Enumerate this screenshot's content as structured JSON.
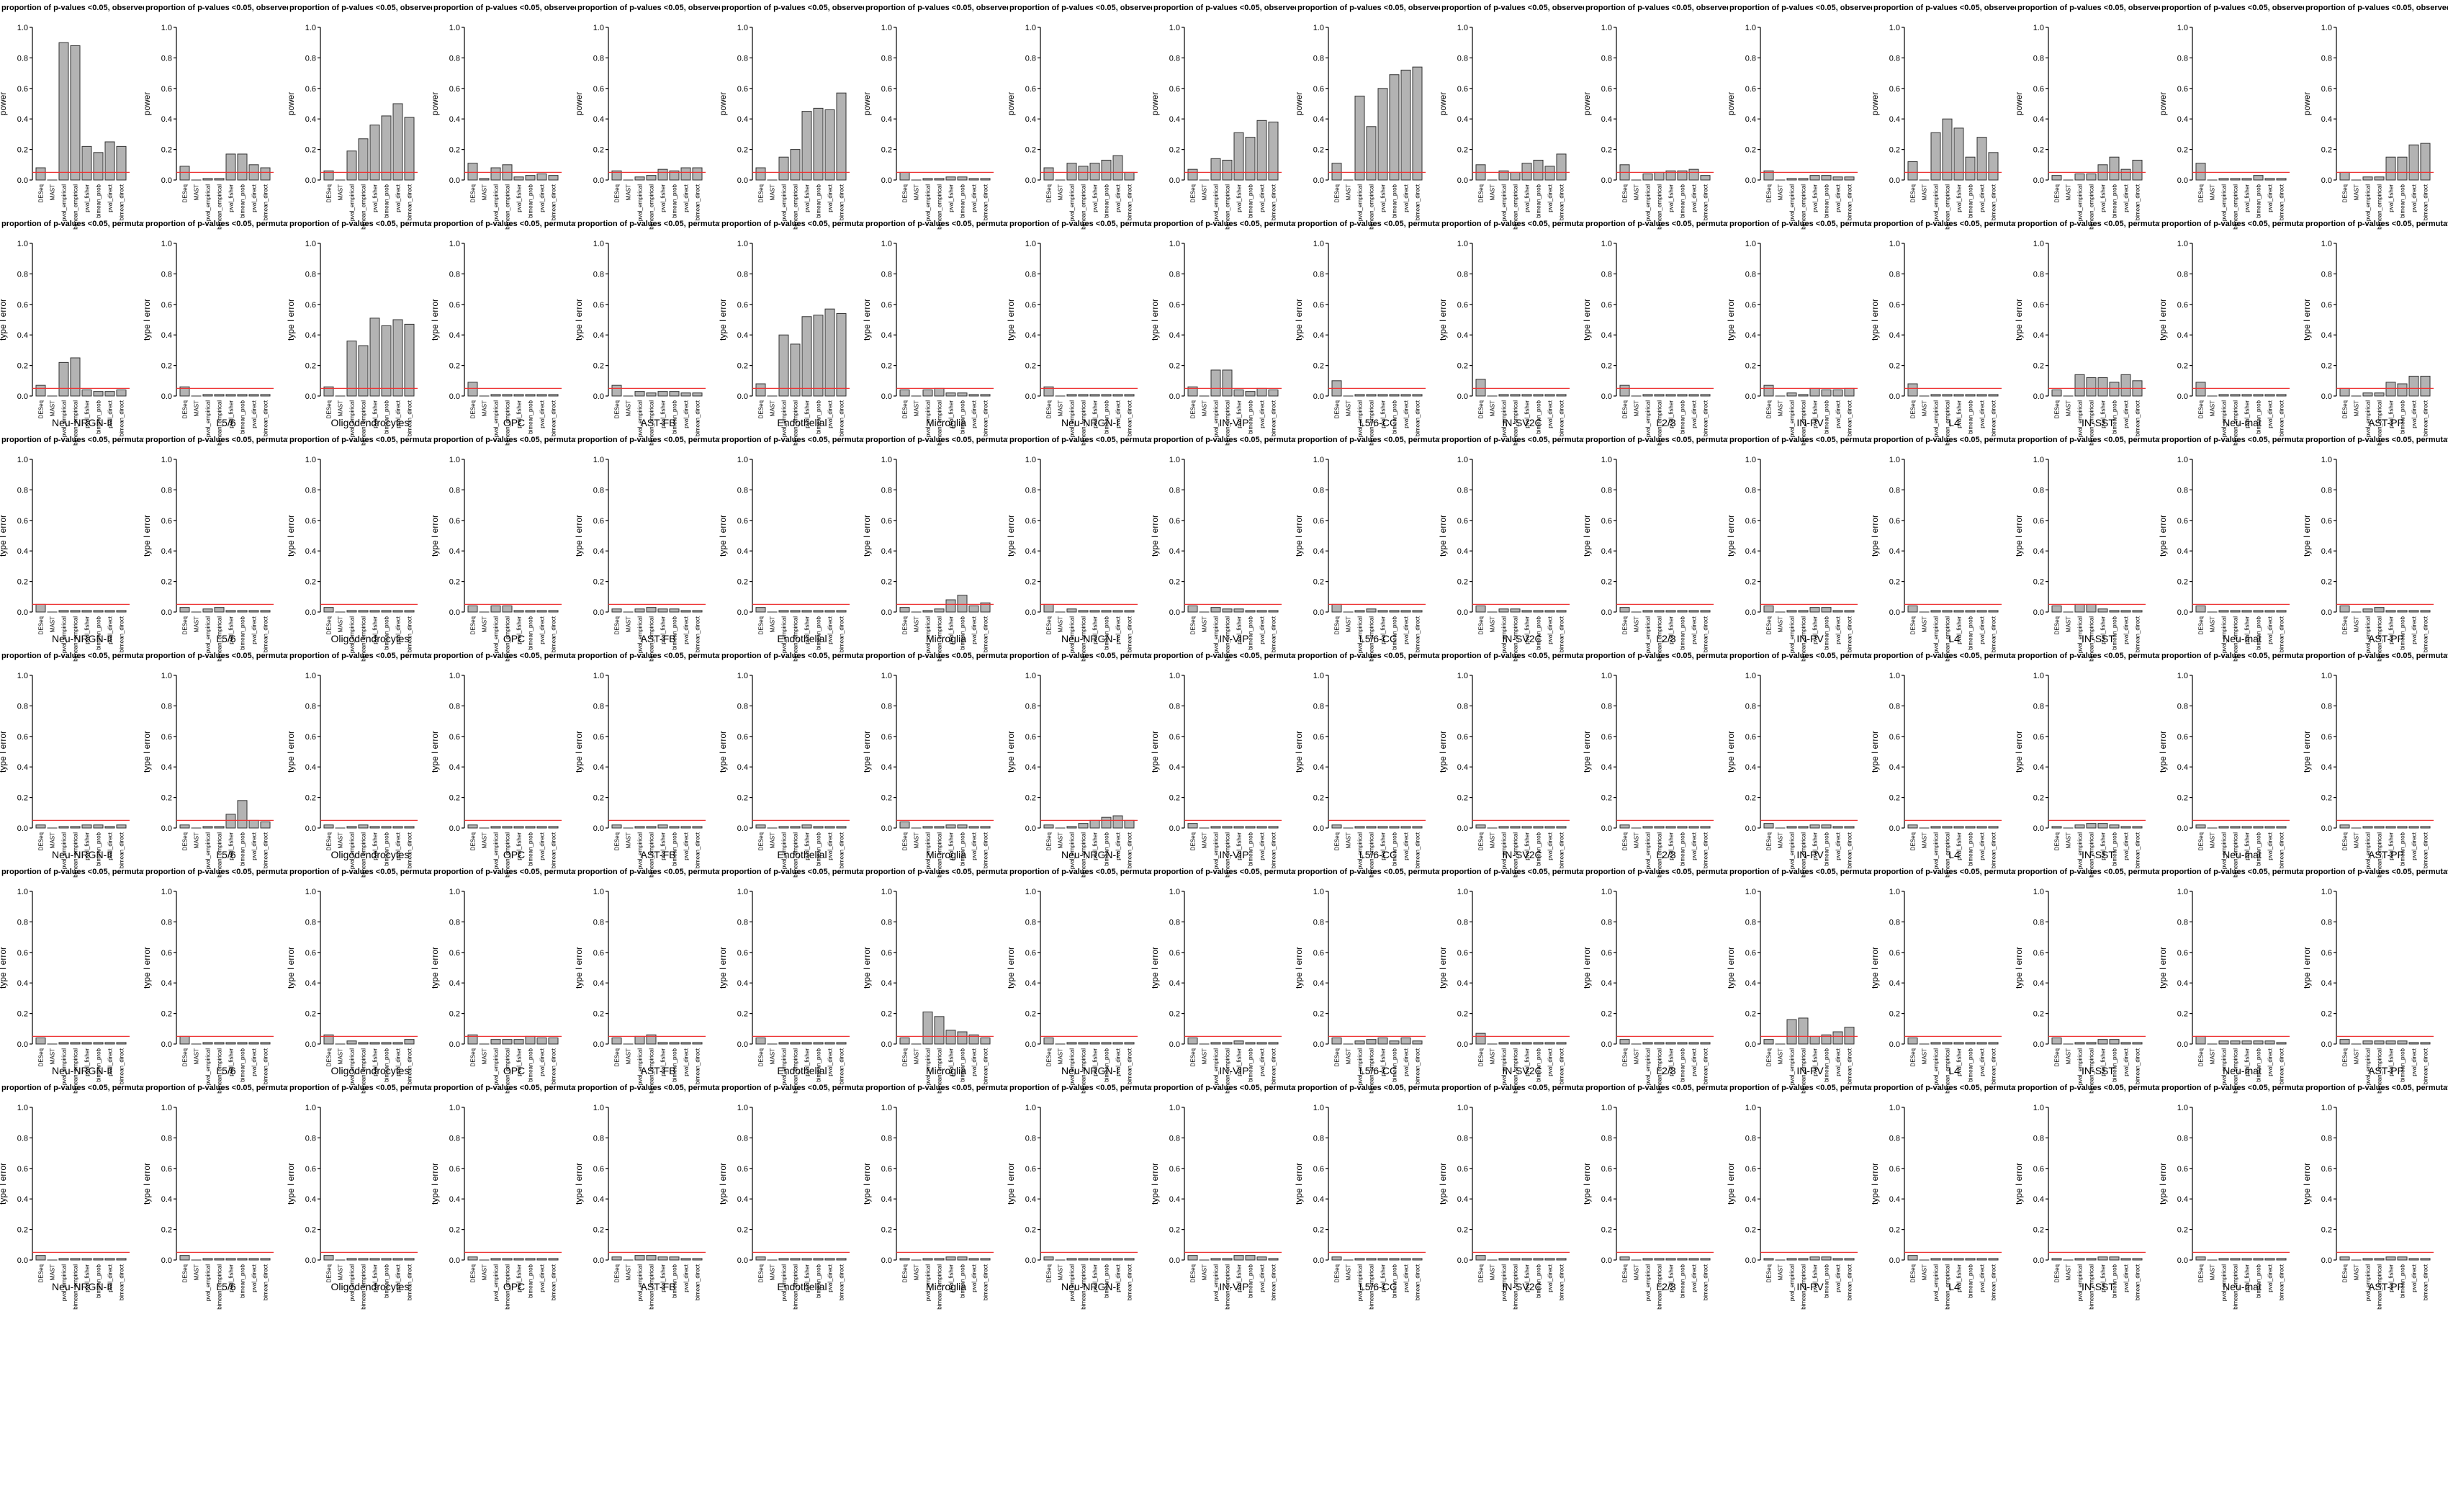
{
  "colors": {
    "bar": "#b3b3b3",
    "bar_edge": "#333333",
    "threshold": "#ee3333",
    "axis": "#000000"
  },
  "chart_data": {
    "type": "bar",
    "layout": "grid of small-multiple bar charts, 6 rows x 17 columns",
    "title_prefix": "proportion of p-values <0.05, ",
    "title_row_suffixes": [
      "observed",
      "permutation",
      "permutation",
      "permutation",
      "permutation",
      "permutation"
    ],
    "ylabels": [
      "power",
      "type I error",
      "type I error",
      "type I error",
      "type I error",
      "type I error"
    ],
    "threshold": 0.05,
    "ylim": [
      0,
      1.0
    ],
    "yticks": [
      "0.0",
      "0.2",
      "0.4",
      "0.6",
      "0.8",
      "1.0"
    ],
    "cell_types": [
      "Neu-NRGN-II",
      "L5/6",
      "Oligodendrocytes",
      "OPC",
      "AST-FB",
      "Endothelial",
      "Microglia",
      "Neu-NRGN-I",
      "IN-VIP",
      "L5/6-CC",
      "IN-SV2C",
      "L2/3",
      "IN-PV",
      "L4",
      "IN-SST",
      "Neu-mat",
      "AST-PP"
    ],
    "methods": [
      "DESeq",
      "MAST",
      "pval_empirical",
      "bimean_empirical",
      "pval_fisher",
      "bimean_prob",
      "pval_direct",
      "bimean_direct"
    ],
    "values": [
      [
        [
          0.08,
          0.0,
          0.9,
          0.88,
          0.22,
          0.18,
          0.25,
          0.22
        ],
        [
          0.09,
          0.0,
          0.01,
          0.01,
          0.17,
          0.17,
          0.1,
          0.08
        ],
        [
          0.06,
          0.0,
          0.19,
          0.27,
          0.36,
          0.42,
          0.5,
          0.41
        ],
        [
          0.11,
          0.01,
          0.08,
          0.1,
          0.02,
          0.03,
          0.04,
          0.03
        ],
        [
          0.06,
          0.0,
          0.02,
          0.03,
          0.07,
          0.06,
          0.08,
          0.08
        ],
        [
          0.08,
          0.0,
          0.15,
          0.2,
          0.45,
          0.47,
          0.46,
          0.57
        ],
        [
          0.05,
          0.0,
          0.01,
          0.01,
          0.02,
          0.02,
          0.01,
          0.01
        ],
        [
          0.08,
          0.0,
          0.11,
          0.09,
          0.11,
          0.13,
          0.16,
          0.05
        ],
        [
          0.07,
          0.0,
          0.14,
          0.13,
          0.31,
          0.28,
          0.39,
          0.38
        ],
        [
          0.11,
          0.0,
          0.55,
          0.35,
          0.6,
          0.69,
          0.72,
          0.74
        ],
        [
          0.1,
          0.0,
          0.06,
          0.05,
          0.11,
          0.13,
          0.09,
          0.17
        ],
        [
          0.1,
          0.0,
          0.04,
          0.05,
          0.06,
          0.06,
          0.07,
          0.03
        ],
        [
          0.06,
          0.0,
          0.01,
          0.01,
          0.03,
          0.03,
          0.02,
          0.02
        ],
        [
          0.12,
          0.0,
          0.31,
          0.4,
          0.34,
          0.15,
          0.28,
          0.18
        ],
        [
          0.03,
          0.0,
          0.04,
          0.04,
          0.1,
          0.15,
          0.07,
          0.13
        ],
        [
          0.11,
          0.0,
          0.01,
          0.01,
          0.01,
          0.03,
          0.01,
          0.01
        ],
        [
          0.05,
          0.0,
          0.02,
          0.02,
          0.15,
          0.15,
          0.23,
          0.24
        ]
      ],
      [
        [
          0.07,
          0.0,
          0.22,
          0.25,
          0.04,
          0.03,
          0.03,
          0.04
        ],
        [
          0.06,
          0.0,
          0.01,
          0.01,
          0.01,
          0.01,
          0.01,
          0.01
        ],
        [
          0.06,
          0.0,
          0.36,
          0.33,
          0.51,
          0.46,
          0.5,
          0.47
        ],
        [
          0.09,
          0.0,
          0.01,
          0.01,
          0.01,
          0.01,
          0.01,
          0.01
        ],
        [
          0.07,
          0.0,
          0.03,
          0.02,
          0.03,
          0.03,
          0.02,
          0.02
        ],
        [
          0.08,
          0.0,
          0.4,
          0.34,
          0.52,
          0.53,
          0.57,
          0.54
        ],
        [
          0.04,
          0.0,
          0.04,
          0.05,
          0.02,
          0.02,
          0.01,
          0.01
        ],
        [
          0.06,
          0.0,
          0.01,
          0.01,
          0.01,
          0.01,
          0.01,
          0.01
        ],
        [
          0.06,
          0.0,
          0.17,
          0.17,
          0.04,
          0.03,
          0.05,
          0.04
        ],
        [
          0.1,
          0.0,
          0.01,
          0.01,
          0.01,
          0.01,
          0.01,
          0.01
        ],
        [
          0.11,
          0.0,
          0.01,
          0.01,
          0.01,
          0.01,
          0.01,
          0.01
        ],
        [
          0.07,
          0.0,
          0.01,
          0.01,
          0.01,
          0.01,
          0.01,
          0.01
        ],
        [
          0.07,
          0.0,
          0.02,
          0.01,
          0.05,
          0.04,
          0.04,
          0.05
        ],
        [
          0.08,
          0.0,
          0.01,
          0.01,
          0.01,
          0.01,
          0.01,
          0.01
        ],
        [
          0.04,
          0.0,
          0.14,
          0.12,
          0.12,
          0.09,
          0.14,
          0.1
        ],
        [
          0.09,
          0.0,
          0.01,
          0.01,
          0.01,
          0.01,
          0.01,
          0.01
        ],
        [
          0.05,
          0.0,
          0.02,
          0.02,
          0.09,
          0.08,
          0.13,
          0.13
        ]
      ],
      [
        [
          0.05,
          0.0,
          0.01,
          0.01,
          0.01,
          0.01,
          0.01,
          0.01
        ],
        [
          0.03,
          0.0,
          0.02,
          0.03,
          0.01,
          0.01,
          0.01,
          0.01
        ],
        [
          0.03,
          0.0,
          0.01,
          0.01,
          0.01,
          0.01,
          0.01,
          0.01
        ],
        [
          0.04,
          0.0,
          0.04,
          0.04,
          0.01,
          0.01,
          0.01,
          0.01
        ],
        [
          0.02,
          0.0,
          0.02,
          0.03,
          0.02,
          0.02,
          0.01,
          0.01
        ],
        [
          0.03,
          0.0,
          0.01,
          0.01,
          0.01,
          0.01,
          0.01,
          0.01
        ],
        [
          0.03,
          0.0,
          0.01,
          0.02,
          0.08,
          0.11,
          0.04,
          0.06
        ],
        [
          0.05,
          0.0,
          0.02,
          0.01,
          0.01,
          0.01,
          0.01,
          0.01
        ],
        [
          0.04,
          0.0,
          0.03,
          0.02,
          0.02,
          0.01,
          0.01,
          0.01
        ],
        [
          0.05,
          0.0,
          0.01,
          0.02,
          0.01,
          0.01,
          0.01,
          0.01
        ],
        [
          0.04,
          0.0,
          0.02,
          0.02,
          0.01,
          0.01,
          0.01,
          0.01
        ],
        [
          0.03,
          0.0,
          0.01,
          0.01,
          0.01,
          0.01,
          0.01,
          0.01
        ],
        [
          0.04,
          0.0,
          0.01,
          0.01,
          0.03,
          0.03,
          0.01,
          0.01
        ],
        [
          0.04,
          0.0,
          0.01,
          0.01,
          0.01,
          0.01,
          0.01,
          0.01
        ],
        [
          0.04,
          0.0,
          0.05,
          0.05,
          0.02,
          0.01,
          0.01,
          0.01
        ],
        [
          0.04,
          0.0,
          0.01,
          0.01,
          0.01,
          0.01,
          0.01,
          0.01
        ],
        [
          0.04,
          0.0,
          0.02,
          0.03,
          0.01,
          0.01,
          0.01,
          0.01
        ]
      ],
      [
        [
          0.02,
          0.0,
          0.01,
          0.01,
          0.02,
          0.02,
          0.01,
          0.02
        ],
        [
          0.02,
          0.0,
          0.01,
          0.01,
          0.09,
          0.18,
          0.05,
          0.04
        ],
        [
          0.02,
          0.0,
          0.01,
          0.02,
          0.01,
          0.01,
          0.01,
          0.01
        ],
        [
          0.02,
          0.0,
          0.01,
          0.01,
          0.01,
          0.01,
          0.01,
          0.01
        ],
        [
          0.02,
          0.0,
          0.01,
          0.01,
          0.02,
          0.01,
          0.01,
          0.01
        ],
        [
          0.02,
          0.0,
          0.01,
          0.01,
          0.02,
          0.01,
          0.01,
          0.01
        ],
        [
          0.04,
          0.0,
          0.01,
          0.01,
          0.02,
          0.02,
          0.01,
          0.01
        ],
        [
          0.02,
          0.0,
          0.01,
          0.03,
          0.05,
          0.07,
          0.08,
          0.05
        ],
        [
          0.03,
          0.0,
          0.01,
          0.01,
          0.01,
          0.01,
          0.01,
          0.01
        ],
        [
          0.02,
          0.0,
          0.01,
          0.01,
          0.01,
          0.01,
          0.01,
          0.01
        ],
        [
          0.02,
          0.0,
          0.01,
          0.01,
          0.01,
          0.01,
          0.01,
          0.01
        ],
        [
          0.02,
          0.0,
          0.01,
          0.01,
          0.01,
          0.01,
          0.01,
          0.01
        ],
        [
          0.03,
          0.0,
          0.01,
          0.01,
          0.02,
          0.02,
          0.01,
          0.01
        ],
        [
          0.02,
          0.0,
          0.01,
          0.01,
          0.01,
          0.01,
          0.01,
          0.01
        ],
        [
          0.01,
          0.0,
          0.02,
          0.03,
          0.03,
          0.02,
          0.01,
          0.01
        ],
        [
          0.02,
          0.0,
          0.01,
          0.01,
          0.01,
          0.01,
          0.01,
          0.01
        ],
        [
          0.02,
          0.0,
          0.01,
          0.01,
          0.01,
          0.01,
          0.01,
          0.01
        ]
      ],
      [
        [
          0.04,
          0.0,
          0.01,
          0.01,
          0.01,
          0.01,
          0.01,
          0.01
        ],
        [
          0.05,
          0.0,
          0.01,
          0.01,
          0.01,
          0.01,
          0.01,
          0.01
        ],
        [
          0.06,
          0.0,
          0.02,
          0.01,
          0.01,
          0.01,
          0.01,
          0.03
        ],
        [
          0.06,
          0.0,
          0.03,
          0.03,
          0.03,
          0.05,
          0.04,
          0.04
        ],
        [
          0.04,
          0.0,
          0.05,
          0.06,
          0.01,
          0.01,
          0.01,
          0.01
        ],
        [
          0.04,
          0.0,
          0.01,
          0.01,
          0.01,
          0.01,
          0.01,
          0.01
        ],
        [
          0.04,
          0.0,
          0.21,
          0.18,
          0.09,
          0.08,
          0.06,
          0.04
        ],
        [
          0.04,
          0.0,
          0.01,
          0.01,
          0.01,
          0.01,
          0.01,
          0.01
        ],
        [
          0.04,
          0.0,
          0.01,
          0.01,
          0.02,
          0.01,
          0.01,
          0.01
        ],
        [
          0.04,
          0.0,
          0.02,
          0.03,
          0.04,
          0.02,
          0.04,
          0.02
        ],
        [
          0.07,
          0.0,
          0.01,
          0.01,
          0.01,
          0.01,
          0.01,
          0.01
        ],
        [
          0.03,
          0.0,
          0.01,
          0.01,
          0.01,
          0.01,
          0.01,
          0.01
        ],
        [
          0.03,
          0.0,
          0.16,
          0.17,
          0.05,
          0.06,
          0.08,
          0.11
        ],
        [
          0.04,
          0.0,
          0.01,
          0.01,
          0.01,
          0.01,
          0.01,
          0.01
        ],
        [
          0.04,
          0.0,
          0.01,
          0.01,
          0.03,
          0.03,
          0.01,
          0.01
        ],
        [
          0.05,
          0.0,
          0.02,
          0.02,
          0.02,
          0.02,
          0.02,
          0.01
        ],
        [
          0.03,
          0.0,
          0.02,
          0.02,
          0.02,
          0.02,
          0.01,
          0.01
        ]
      ],
      [
        [
          0.03,
          0.0,
          0.01,
          0.01,
          0.01,
          0.01,
          0.01,
          0.01
        ],
        [
          0.03,
          0.0,
          0.01,
          0.01,
          0.01,
          0.01,
          0.01,
          0.01
        ],
        [
          0.03,
          0.0,
          0.01,
          0.01,
          0.01,
          0.01,
          0.01,
          0.01
        ],
        [
          0.02,
          0.0,
          0.01,
          0.01,
          0.01,
          0.01,
          0.01,
          0.01
        ],
        [
          0.02,
          0.0,
          0.03,
          0.03,
          0.02,
          0.02,
          0.01,
          0.01
        ],
        [
          0.02,
          0.0,
          0.01,
          0.01,
          0.01,
          0.01,
          0.01,
          0.01
        ],
        [
          0.01,
          0.0,
          0.01,
          0.01,
          0.02,
          0.02,
          0.01,
          0.01
        ],
        [
          0.02,
          0.0,
          0.01,
          0.01,
          0.01,
          0.01,
          0.01,
          0.01
        ],
        [
          0.03,
          0.0,
          0.01,
          0.01,
          0.03,
          0.03,
          0.02,
          0.01
        ],
        [
          0.02,
          0.0,
          0.01,
          0.01,
          0.01,
          0.01,
          0.01,
          0.01
        ],
        [
          0.03,
          0.0,
          0.01,
          0.01,
          0.01,
          0.01,
          0.01,
          0.01
        ],
        [
          0.02,
          0.0,
          0.01,
          0.01,
          0.01,
          0.01,
          0.01,
          0.01
        ],
        [
          0.01,
          0.0,
          0.01,
          0.01,
          0.02,
          0.02,
          0.01,
          0.01
        ],
        [
          0.03,
          0.0,
          0.01,
          0.01,
          0.01,
          0.01,
          0.01,
          0.01
        ],
        [
          0.01,
          0.0,
          0.01,
          0.01,
          0.02,
          0.02,
          0.01,
          0.01
        ],
        [
          0.02,
          0.0,
          0.01,
          0.01,
          0.01,
          0.01,
          0.01,
          0.01
        ],
        [
          0.02,
          0.0,
          0.01,
          0.01,
          0.02,
          0.02,
          0.01,
          0.01
        ]
      ]
    ]
  }
}
